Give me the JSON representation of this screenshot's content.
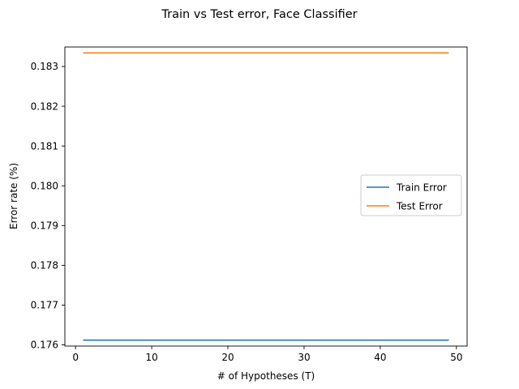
{
  "chart_data": {
    "type": "line",
    "title": "Train vs Test error, Face Classifier",
    "xlabel": "# of Hypotheses (T)",
    "ylabel": "Error rate (%)",
    "xlim": [
      -1.4,
      51.4
    ],
    "ylim": [
      0.17597,
      0.18349
    ],
    "xticks": [
      0,
      10,
      20,
      30,
      40,
      50
    ],
    "yticks": [
      0.176,
      0.177,
      0.178,
      0.179,
      0.18,
      0.181,
      0.182,
      0.183
    ],
    "ytick_labels": [
      "0.176",
      "0.177",
      "0.178",
      "0.179",
      "0.180",
      "0.181",
      "0.182",
      "0.183"
    ],
    "grid": false,
    "legend_position": "center-right",
    "series": [
      {
        "name": "Train Error",
        "color": "#1f77b4",
        "x": [
          1,
          49
        ],
        "y": [
          0.17612,
          0.17612
        ]
      },
      {
        "name": "Test Error",
        "color": "#ff7f0e",
        "x": [
          1,
          49
        ],
        "y": [
          0.18334,
          0.18334
        ]
      }
    ]
  }
}
